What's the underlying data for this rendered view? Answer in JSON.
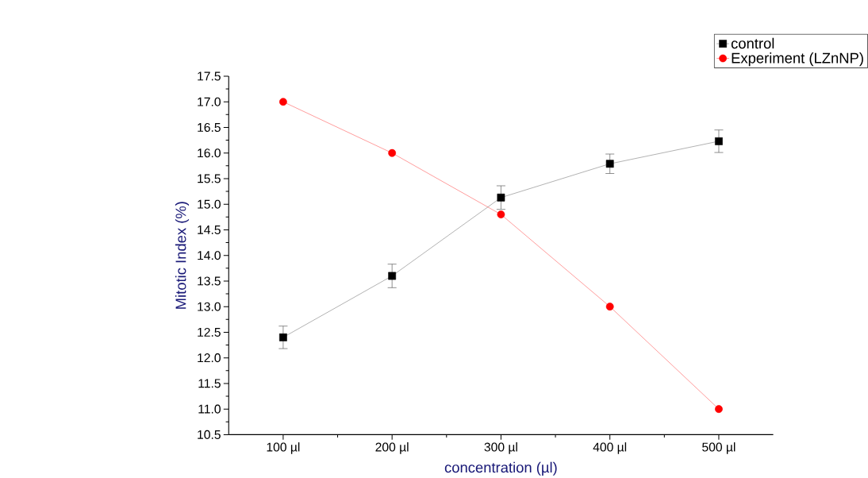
{
  "chart_data": {
    "type": "line",
    "xlabel": "concentration (µl)",
    "ylabel": "Mitotic Index (%)",
    "categories": [
      "100 µl",
      "200 µl",
      "300 µl",
      "400 µl",
      "500 µl"
    ],
    "series": [
      {
        "name": "control",
        "color": "#000000",
        "marker": "square",
        "values": [
          12.4,
          13.6,
          15.13,
          15.79,
          16.23
        ],
        "errors": [
          0.22,
          0.23,
          0.23,
          0.19,
          0.22
        ]
      },
      {
        "name": "Experiment (LZnNP)",
        "color": "#ff0000",
        "marker": "circle",
        "values": [
          17.0,
          16.0,
          14.8,
          13.0,
          11.0
        ]
      }
    ],
    "ylim": [
      10.5,
      17.5
    ],
    "yticks": [
      10.5,
      {
        "value": 11,
        "label": "11.0"
      },
      11.5,
      {
        "value": 12,
        "label": "12.0"
      },
      12.5,
      {
        "value": 13,
        "label": "13.0"
      },
      13.5,
      {
        "value": 14,
        "label": "14.0"
      },
      14.5,
      {
        "value": 15,
        "label": "15.0"
      },
      15.5,
      {
        "value": 16,
        "label": "16.0"
      },
      16.5,
      {
        "value": 17,
        "label": "17.0"
      },
      17.5
    ],
    "legend": "top right",
    "grid": false,
    "line_style": "solid"
  }
}
